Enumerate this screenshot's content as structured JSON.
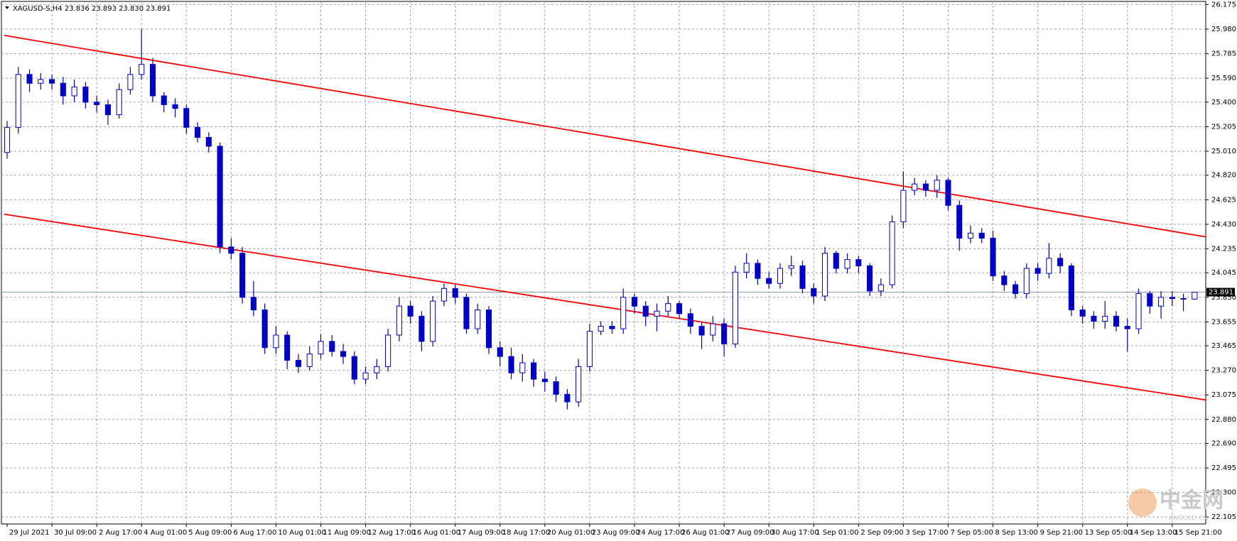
{
  "chart_data": {
    "type": "candlestick",
    "title": "XAGUSD-S,H4  23.836 23.893 23.830 23.891",
    "categories": [
      "29 Jul 2021",
      null,
      null,
      null,
      "30 Jul 09:00",
      null,
      null,
      null,
      "2 Aug 17:00",
      null,
      null,
      null,
      "4 Aug 01:00",
      null,
      null,
      null,
      "5 Aug 09:00",
      null,
      null,
      null,
      "6 Aug 17:00",
      null,
      null,
      null,
      "10 Aug 01:00",
      null,
      null,
      null,
      "11 Aug 09:00",
      null,
      null,
      null,
      "12 Aug 17:00",
      null,
      null,
      null,
      "16 Aug 01:00",
      null,
      null,
      null,
      "17 Aug 09:00",
      null,
      null,
      null,
      "18 Aug 17:00",
      null,
      null,
      null,
      "20 Aug 01:00",
      null,
      null,
      null,
      "23 Aug 09:00",
      null,
      null,
      null,
      "24 Aug 17:00",
      null,
      null,
      null,
      "26 Aug 01:00",
      null,
      null,
      null,
      "27 Aug 09:00",
      null,
      null,
      null,
      "30 Aug 17:00",
      null,
      null,
      null,
      "1 Sep 01:00",
      null,
      null,
      null,
      "2 Sep 09:00",
      null,
      null,
      null,
      "3 Sep 17:00",
      null,
      null,
      null,
      "7 Sep 05:00",
      null,
      null,
      null,
      "8 Sep 13:00",
      null,
      null,
      null,
      "9 Sep 21:00",
      null,
      null,
      null,
      "13 Sep 05:00",
      null,
      null,
      null,
      "14 Sep 13:00",
      null,
      null,
      null,
      "15 Sep 21:00",
      null,
      null
    ],
    "open": [
      25.0,
      25.2,
      25.62,
      25.55,
      25.58,
      25.55,
      25.45,
      25.52,
      25.4,
      25.38,
      25.3,
      25.5,
      25.62,
      25.7,
      25.45,
      25.38,
      25.35,
      25.2,
      25.12,
      25.05,
      24.25,
      24.2,
      23.85,
      23.75,
      23.45,
      23.55,
      23.35,
      23.3,
      23.4,
      23.5,
      23.42,
      23.38,
      23.2,
      23.25,
      23.3,
      23.55,
      23.78,
      23.7,
      23.5,
      23.82,
      23.92,
      23.85,
      23.6,
      23.75,
      23.45,
      23.38,
      23.25,
      23.33,
      23.2,
      23.18,
      23.08,
      23.02,
      23.3,
      23.58,
      23.62,
      23.6,
      23.85,
      23.78,
      23.7,
      23.74,
      23.8,
      23.72,
      23.62,
      23.55,
      23.64,
      23.48,
      24.05,
      24.12,
      24.0,
      23.96,
      24.08,
      24.1,
      23.92,
      23.86,
      24.2,
      24.08,
      24.15,
      24.1,
      23.9,
      23.95,
      24.45,
      24.7,
      24.75,
      24.7,
      24.78,
      24.58,
      24.32,
      24.36,
      24.32,
      24.02,
      23.95,
      23.88,
      24.08,
      24.04,
      24.16,
      24.1,
      23.75,
      23.7,
      23.66,
      23.7,
      23.62,
      23.6,
      23.88,
      23.78,
      23.85,
      23.84,
      23.836
    ],
    "high": [
      25.25,
      25.68,
      25.66,
      25.63,
      25.62,
      25.6,
      25.58,
      25.56,
      25.45,
      25.42,
      25.55,
      25.68,
      25.98,
      25.75,
      25.48,
      25.43,
      25.38,
      25.24,
      25.16,
      25.08,
      24.32,
      24.25,
      23.98,
      23.8,
      23.62,
      23.58,
      23.4,
      23.46,
      23.56,
      23.55,
      23.48,
      23.42,
      23.3,
      23.36,
      23.6,
      23.85,
      23.82,
      23.74,
      23.86,
      23.96,
      23.95,
      23.88,
      23.8,
      23.78,
      23.5,
      23.45,
      23.4,
      23.36,
      23.26,
      23.22,
      23.12,
      23.36,
      23.64,
      23.66,
      23.66,
      23.92,
      23.88,
      23.82,
      23.8,
      23.86,
      23.82,
      23.76,
      23.66,
      23.7,
      23.68,
      24.1,
      24.2,
      24.15,
      24.05,
      24.12,
      24.18,
      24.14,
      23.96,
      24.25,
      24.22,
      24.2,
      24.18,
      24.12,
      24.0,
      24.5,
      24.85,
      24.8,
      24.78,
      24.82,
      24.8,
      24.62,
      24.42,
      24.4,
      24.38,
      24.06,
      23.98,
      24.12,
      24.12,
      24.28,
      24.2,
      24.12,
      23.78,
      23.74,
      23.82,
      23.74,
      23.68,
      23.92,
      23.9,
      23.9,
      23.9,
      23.88,
      23.893
    ],
    "low": [
      24.95,
      25.15,
      25.48,
      25.5,
      25.5,
      25.38,
      25.4,
      25.35,
      25.32,
      25.22,
      25.27,
      25.46,
      25.58,
      25.4,
      25.32,
      25.28,
      25.15,
      25.08,
      25.0,
      24.2,
      24.15,
      23.8,
      23.7,
      23.4,
      23.4,
      23.28,
      23.25,
      23.27,
      23.36,
      23.38,
      23.32,
      23.16,
      23.16,
      23.2,
      23.26,
      23.5,
      23.64,
      23.42,
      23.46,
      23.78,
      23.8,
      23.56,
      23.56,
      23.4,
      23.3,
      23.2,
      23.18,
      23.14,
      23.1,
      23.02,
      22.96,
      22.98,
      23.26,
      23.55,
      23.56,
      23.56,
      23.72,
      23.62,
      23.58,
      23.7,
      23.68,
      23.56,
      23.44,
      23.5,
      23.38,
      23.45,
      24.0,
      23.95,
      23.92,
      23.92,
      24.02,
      23.88,
      23.8,
      23.82,
      24.04,
      24.04,
      24.04,
      23.86,
      23.86,
      23.92,
      24.4,
      24.66,
      24.65,
      24.64,
      24.54,
      24.22,
      24.28,
      24.28,
      23.98,
      23.9,
      23.84,
      23.84,
      23.98,
      24.0,
      24.04,
      23.7,
      23.64,
      23.6,
      23.6,
      23.58,
      23.42,
      23.56,
      23.72,
      23.68,
      23.78,
      23.74,
      23.83
    ],
    "close": [
      25.2,
      25.62,
      25.55,
      25.58,
      25.55,
      25.45,
      25.52,
      25.4,
      25.38,
      25.3,
      25.5,
      25.62,
      25.7,
      25.45,
      25.38,
      25.35,
      25.2,
      25.12,
      25.05,
      24.25,
      24.2,
      23.85,
      23.75,
      23.45,
      23.55,
      23.35,
      23.3,
      23.4,
      23.5,
      23.42,
      23.38,
      23.2,
      23.25,
      23.3,
      23.55,
      23.78,
      23.7,
      23.5,
      23.82,
      23.92,
      23.85,
      23.6,
      23.75,
      23.45,
      23.38,
      23.25,
      23.33,
      23.2,
      23.18,
      23.08,
      23.02,
      23.3,
      23.58,
      23.62,
      23.6,
      23.85,
      23.78,
      23.7,
      23.74,
      23.8,
      23.72,
      23.62,
      23.55,
      23.64,
      23.48,
      24.05,
      24.12,
      24.0,
      23.96,
      24.08,
      24.1,
      23.92,
      23.86,
      24.2,
      24.08,
      24.15,
      24.1,
      23.9,
      23.95,
      24.45,
      24.7,
      24.75,
      24.7,
      24.78,
      24.58,
      24.32,
      24.36,
      24.32,
      24.02,
      23.95,
      23.88,
      24.08,
      24.04,
      24.16,
      24.1,
      23.75,
      23.7,
      23.66,
      23.7,
      23.62,
      23.6,
      23.88,
      23.78,
      23.85,
      23.84,
      23.836,
      23.891
    ],
    "up_color": "#ffffff",
    "down_color": "#0000cc",
    "candle_stroke": "#0000cc",
    "ylim": [
      22.05,
      26.2
    ],
    "yticks": [
      26.175,
      {
        "value": 25.98,
        "label": "25.980"
      },
      25.785,
      {
        "value": 25.59,
        "label": "25.590"
      },
      {
        "value": 25.4,
        "label": "25.400"
      },
      25.205,
      {
        "value": 25.01,
        "label": "25.010"
      },
      {
        "value": 24.82,
        "label": "24.820"
      },
      24.625,
      {
        "value": 24.43,
        "label": "24.430"
      },
      24.235,
      24.045,
      {
        "value": 23.85,
        "label": "23.850"
      },
      23.655,
      23.465,
      {
        "value": 23.27,
        "label": "23.270"
      },
      23.075,
      {
        "value": 22.88,
        "label": "22.880"
      },
      {
        "value": 22.69,
        "label": "22.690"
      },
      22.495,
      {
        "value": 22.3,
        "label": "22.300"
      },
      22.105
    ],
    "grid": true,
    "trendlines": [
      {
        "color": "#ff0000",
        "y_start": 25.93,
        "y_end": 24.33
      },
      {
        "color": "#ff0000",
        "y_start": 24.51,
        "y_end": 23.035
      }
    ],
    "last_price": 23.891,
    "watermark": "中金网",
    "watermark_sub": "CNGOLD.CN"
  }
}
